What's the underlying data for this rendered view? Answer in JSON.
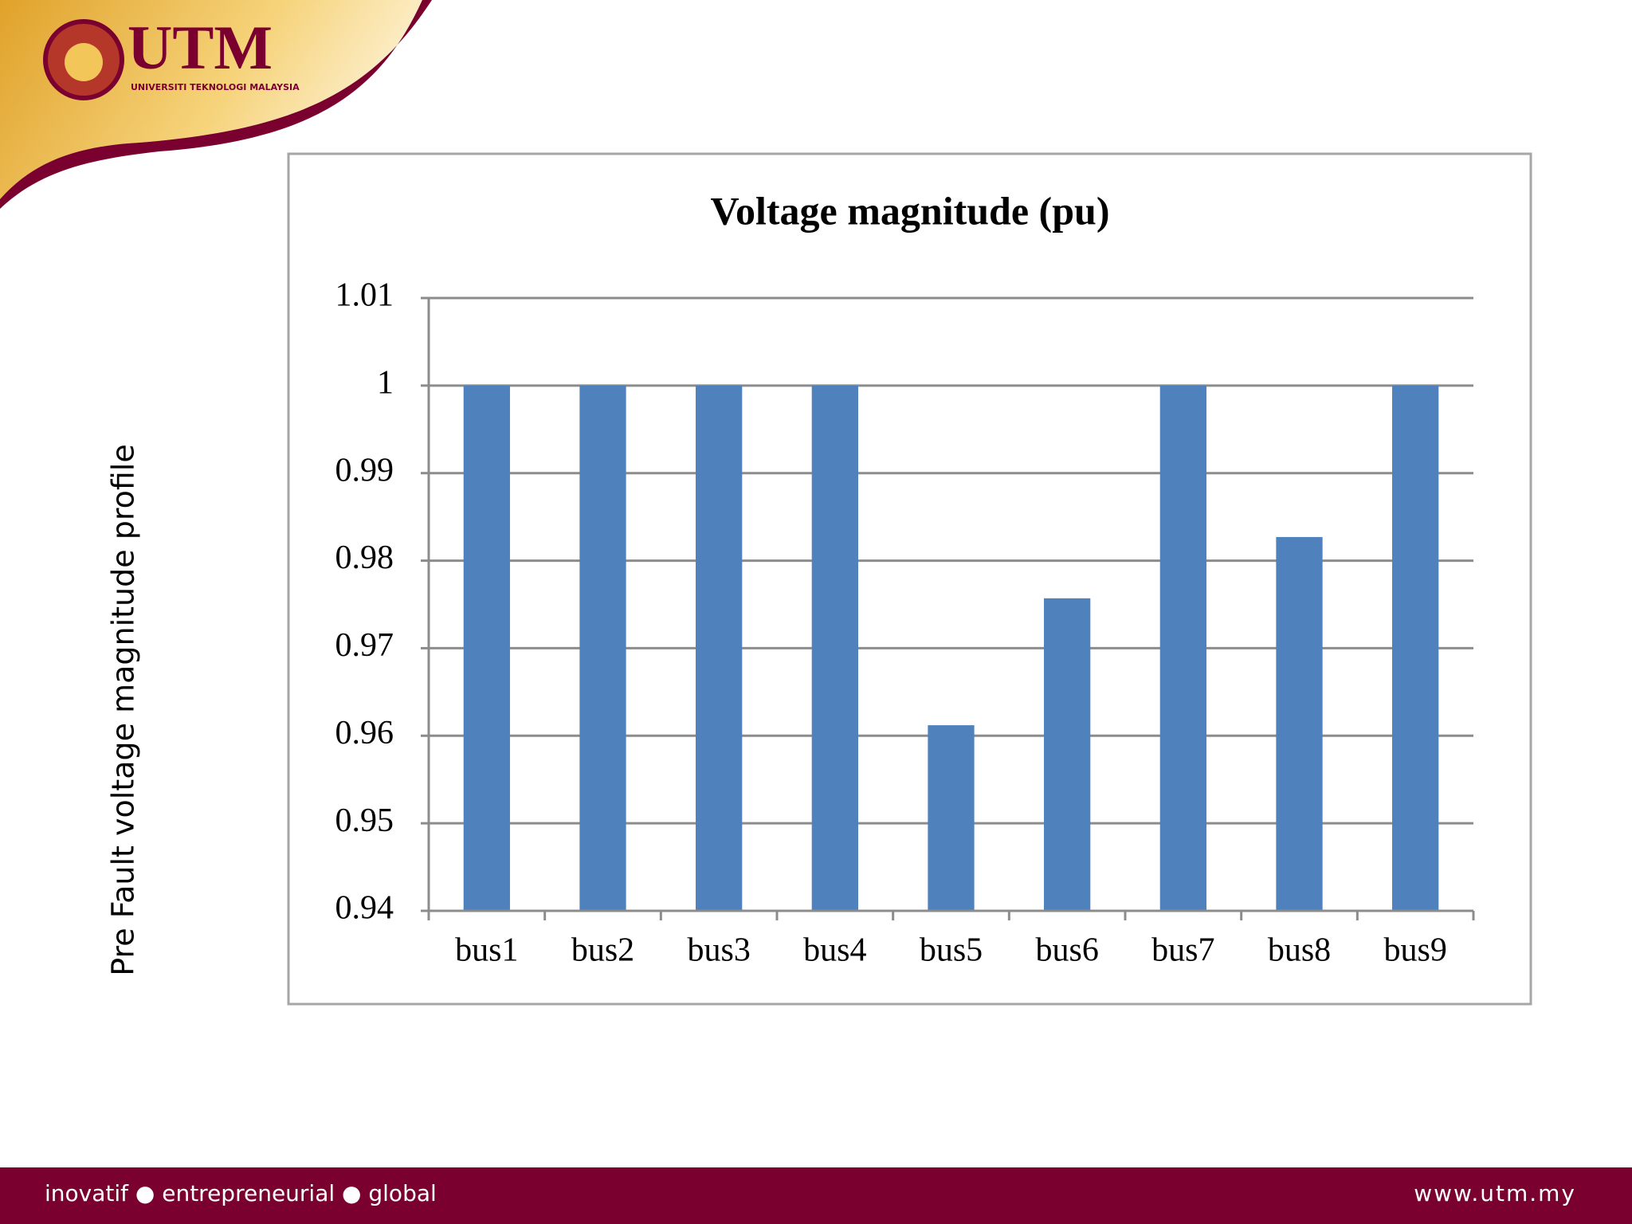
{
  "slide": {
    "logo_text": "UTM",
    "logo_subtext": "UNIVERSITI TEKNOLOGI MALAYSIA",
    "side_label": "Pre Fault voltage magnitude profile",
    "footer_left": "inovatif ● entrepreneurial ● global",
    "footer_right": "www.utm.my"
  },
  "chart_data": {
    "type": "bar",
    "title": "Voltage magnitude (pu)",
    "categories": [
      "bus1",
      "bus2",
      "bus3",
      "bus4",
      "bus5",
      "bus6",
      "bus7",
      "bus8",
      "bus9"
    ],
    "values": [
      1,
      1,
      1,
      1,
      0.9612,
      0.9757,
      1,
      0.9827,
      1
    ],
    "color": "#4f81bd",
    "ylim": [
      0.94,
      1.01
    ],
    "yticks": [
      0.94,
      0.95,
      0.96,
      0.97,
      0.98,
      0.99,
      1,
      1.01
    ],
    "grid": true
  }
}
